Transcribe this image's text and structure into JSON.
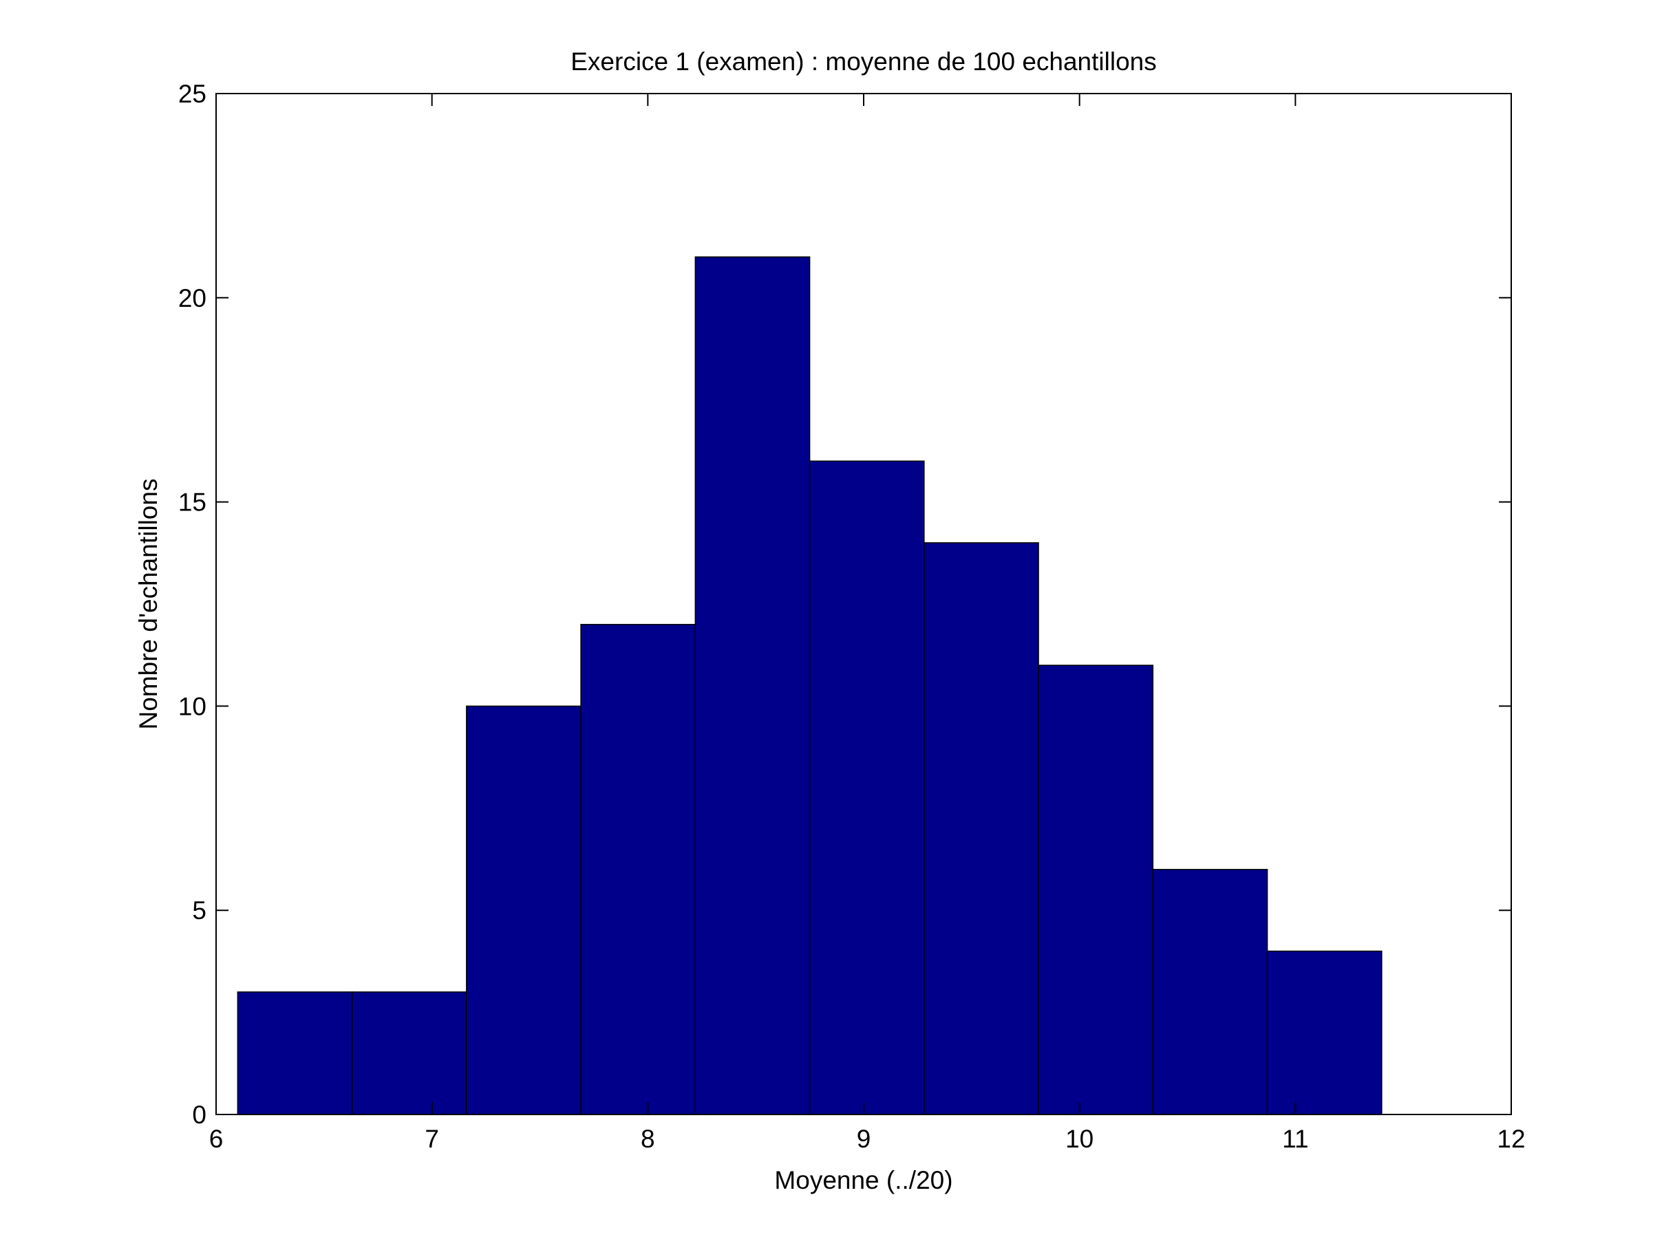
{
  "chart_data": {
    "type": "bar",
    "title": "Exercice 1 (examen) : moyenne de 100 echantillons",
    "xlabel": "Moyenne (../20)",
    "ylabel": "Nombre d'echantillons",
    "xlim": [
      6,
      12
    ],
    "ylim": [
      0,
      25
    ],
    "xticks": [
      6,
      7,
      8,
      9,
      10,
      11,
      12
    ],
    "yticks": [
      0,
      5,
      10,
      15,
      20,
      25
    ],
    "bins": [
      {
        "x0": 6.1,
        "x1": 6.63,
        "count": 3
      },
      {
        "x0": 6.63,
        "x1": 7.16,
        "count": 3
      },
      {
        "x0": 7.16,
        "x1": 7.69,
        "count": 10
      },
      {
        "x0": 7.69,
        "x1": 8.22,
        "count": 12
      },
      {
        "x0": 8.22,
        "x1": 8.75,
        "count": 21
      },
      {
        "x0": 8.75,
        "x1": 9.28,
        "count": 16
      },
      {
        "x0": 9.28,
        "x1": 9.81,
        "count": 14
      },
      {
        "x0": 9.81,
        "x1": 10.34,
        "count": 11
      },
      {
        "x0": 10.34,
        "x1": 10.87,
        "count": 6
      },
      {
        "x0": 10.87,
        "x1": 11.4,
        "count": 4
      }
    ],
    "bar_color": "#00008B",
    "edge_color": "#000000",
    "grid": false,
    "legend": false
  }
}
